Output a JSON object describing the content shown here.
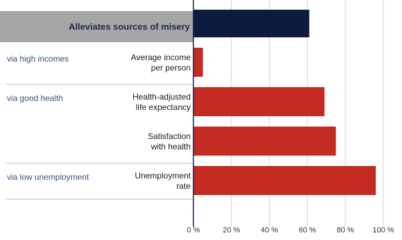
{
  "chart_data": {
    "type": "bar",
    "orientation": "horizontal",
    "title": "",
    "xlabel": "",
    "ylabel": "",
    "xlim": [
      0,
      100
    ],
    "x_tick_labels": [
      "0 %",
      "20 %",
      "40 %",
      "60 %",
      "80 %",
      "100 %"
    ],
    "x_tick_values": [
      0,
      20,
      40,
      60,
      80,
      100
    ],
    "grid": "vertical",
    "header": {
      "label": "Alleviates sources of misery",
      "value": 61,
      "color": "#0d1b3e"
    },
    "groups": [
      {
        "label": "via high incomes",
        "rows": [
          0
        ]
      },
      {
        "label": "via good health",
        "rows": [
          1,
          2
        ]
      },
      {
        "label": "via low unemployment",
        "rows": [
          3
        ]
      }
    ],
    "categories": [
      "Average income per person",
      "Health-adjusted life expectancy",
      "Satisfaction with health",
      "Unemployment rate"
    ],
    "category_lines": [
      [
        "Average income",
        "per person"
      ],
      [
        "Health-adjusted",
        "life expectancy"
      ],
      [
        "Satisfaction",
        "with health"
      ],
      [
        "Unemployment",
        "rate"
      ]
    ],
    "values": [
      5,
      69,
      75,
      96
    ],
    "bar_color": "#c42b22"
  }
}
